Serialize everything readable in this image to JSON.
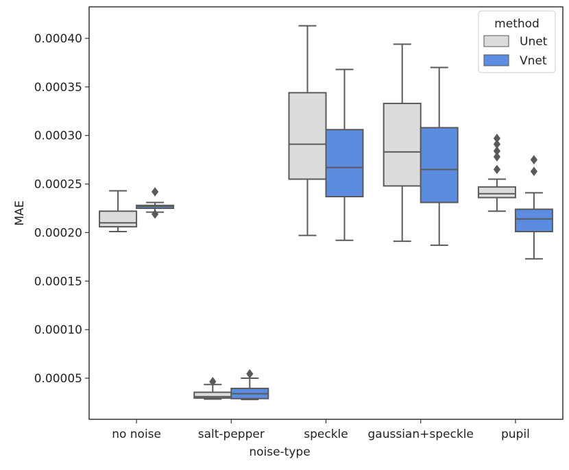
{
  "chart_data": {
    "type": "box",
    "title": "",
    "xlabel": "noise-type",
    "ylabel": "MAE",
    "ylim": [
      0.0,
      0.000425
    ],
    "yticks": [
      5e-05,
      0.0001,
      0.00015,
      0.0002,
      0.00025,
      0.0003,
      0.00035,
      0.0004
    ],
    "ytick_labels": [
      "0.00005",
      "0.00010",
      "0.00015",
      "0.00020",
      "0.00025",
      "0.00030",
      "0.00035",
      "0.00040"
    ],
    "categories": [
      "no noise",
      "salt-pepper",
      "speckle",
      "gaussian+speckle",
      "pupil"
    ],
    "legend": {
      "title": "method",
      "position": "top-right"
    },
    "series": [
      {
        "name": "Unet",
        "color": "#dcdcdc",
        "boxes": [
          {
            "whislo": 0.000201,
            "q1": 0.000206,
            "med": 0.00021,
            "q3": 0.000222,
            "whishi": 0.000243,
            "fliers": []
          },
          {
            "whislo": 2.85e-05,
            "q1": 2.95e-05,
            "med": 3.1e-05,
            "q3": 3.55e-05,
            "whishi": 4.35e-05,
            "fliers": [
              4.65e-05
            ]
          },
          {
            "whislo": 0.000197,
            "q1": 0.000255,
            "med": 0.000291,
            "q3": 0.000344,
            "whishi": 0.000413,
            "fliers": []
          },
          {
            "whislo": 0.000191,
            "q1": 0.000248,
            "med": 0.000283,
            "q3": 0.000333,
            "whishi": 0.000394,
            "fliers": []
          },
          {
            "whislo": 0.000222,
            "q1": 0.000236,
            "med": 0.00024,
            "q3": 0.000247,
            "whishi": 0.000255,
            "fliers": [
              0.000265,
              0.000278,
              0.000284,
              0.000291,
              0.000297
            ]
          }
        ]
      },
      {
        "name": "Vnet",
        "color": "#5b8ce0",
        "boxes": [
          {
            "whislo": 0.000221,
            "q1": 0.000225,
            "med": 0.000227,
            "q3": 0.000228,
            "whishi": 0.000231,
            "fliers": [
              0.000242,
              0.000219
            ]
          },
          {
            "whislo": 2.8e-05,
            "q1": 2.9e-05,
            "med": 3.4e-05,
            "q3": 3.95e-05,
            "whishi": 5e-05,
            "fliers": [
              5.45e-05
            ]
          },
          {
            "whislo": 0.000192,
            "q1": 0.000237,
            "med": 0.000267,
            "q3": 0.000306,
            "whishi": 0.000368,
            "fliers": []
          },
          {
            "whislo": 0.000187,
            "q1": 0.000231,
            "med": 0.000265,
            "q3": 0.000308,
            "whishi": 0.00037,
            "fliers": []
          },
          {
            "whislo": 0.000173,
            "q1": 0.000201,
            "med": 0.000214,
            "q3": 0.000224,
            "whishi": 0.000241,
            "fliers": [
              0.000263,
              0.000275
            ]
          }
        ]
      }
    ]
  }
}
